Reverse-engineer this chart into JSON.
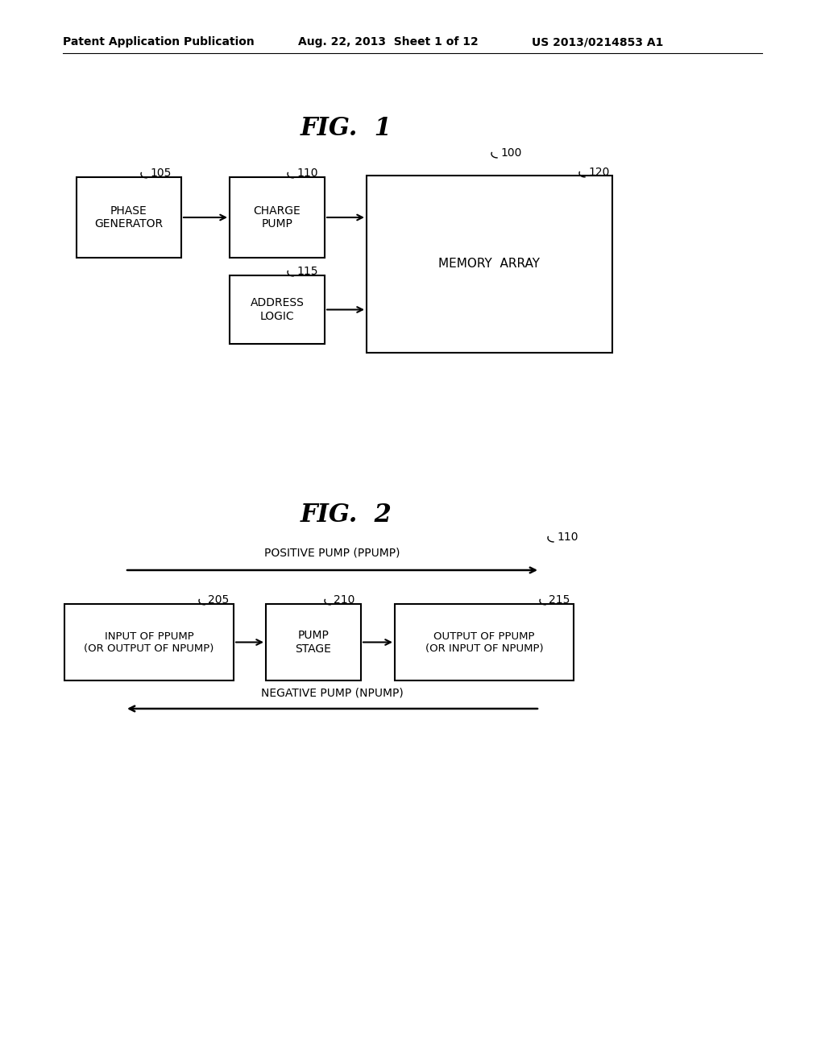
{
  "bg_color": "#ffffff",
  "header_left": "Patent Application Publication",
  "header_mid": "Aug. 22, 2013  Sheet 1 of 12",
  "header_right": "US 2013/0214853 A1",
  "fig1_title": "FIG.  1",
  "fig2_title": "FIG.  2",
  "box_phase_label": "PHASE\nGENERATOR",
  "box_phase_ref": "105",
  "box_charge_label": "CHARGE\nPUMP",
  "box_charge_ref": "110",
  "box_addr_label": "ADDRESS\nLOGIC",
  "box_addr_ref": "115",
  "box_mem_label": "MEMORY  ARRAY",
  "box_mem_ref": "120",
  "ref100_label": "100",
  "ref110_label": "110",
  "ppump_label": "POSITIVE PUMP (PPUMP)",
  "npump_label": "NEGATIVE PUMP (NPUMP)",
  "box_input_label": "INPUT OF PPUMP\n(OR OUTPUT OF NPUMP)",
  "box_input_ref": "205",
  "box_pump_label": "PUMP\nSTAGE",
  "box_pump_ref": "210",
  "box_output_label": "OUTPUT OF PPUMP\n(OR INPUT OF NPUMP)",
  "box_output_ref": "215"
}
